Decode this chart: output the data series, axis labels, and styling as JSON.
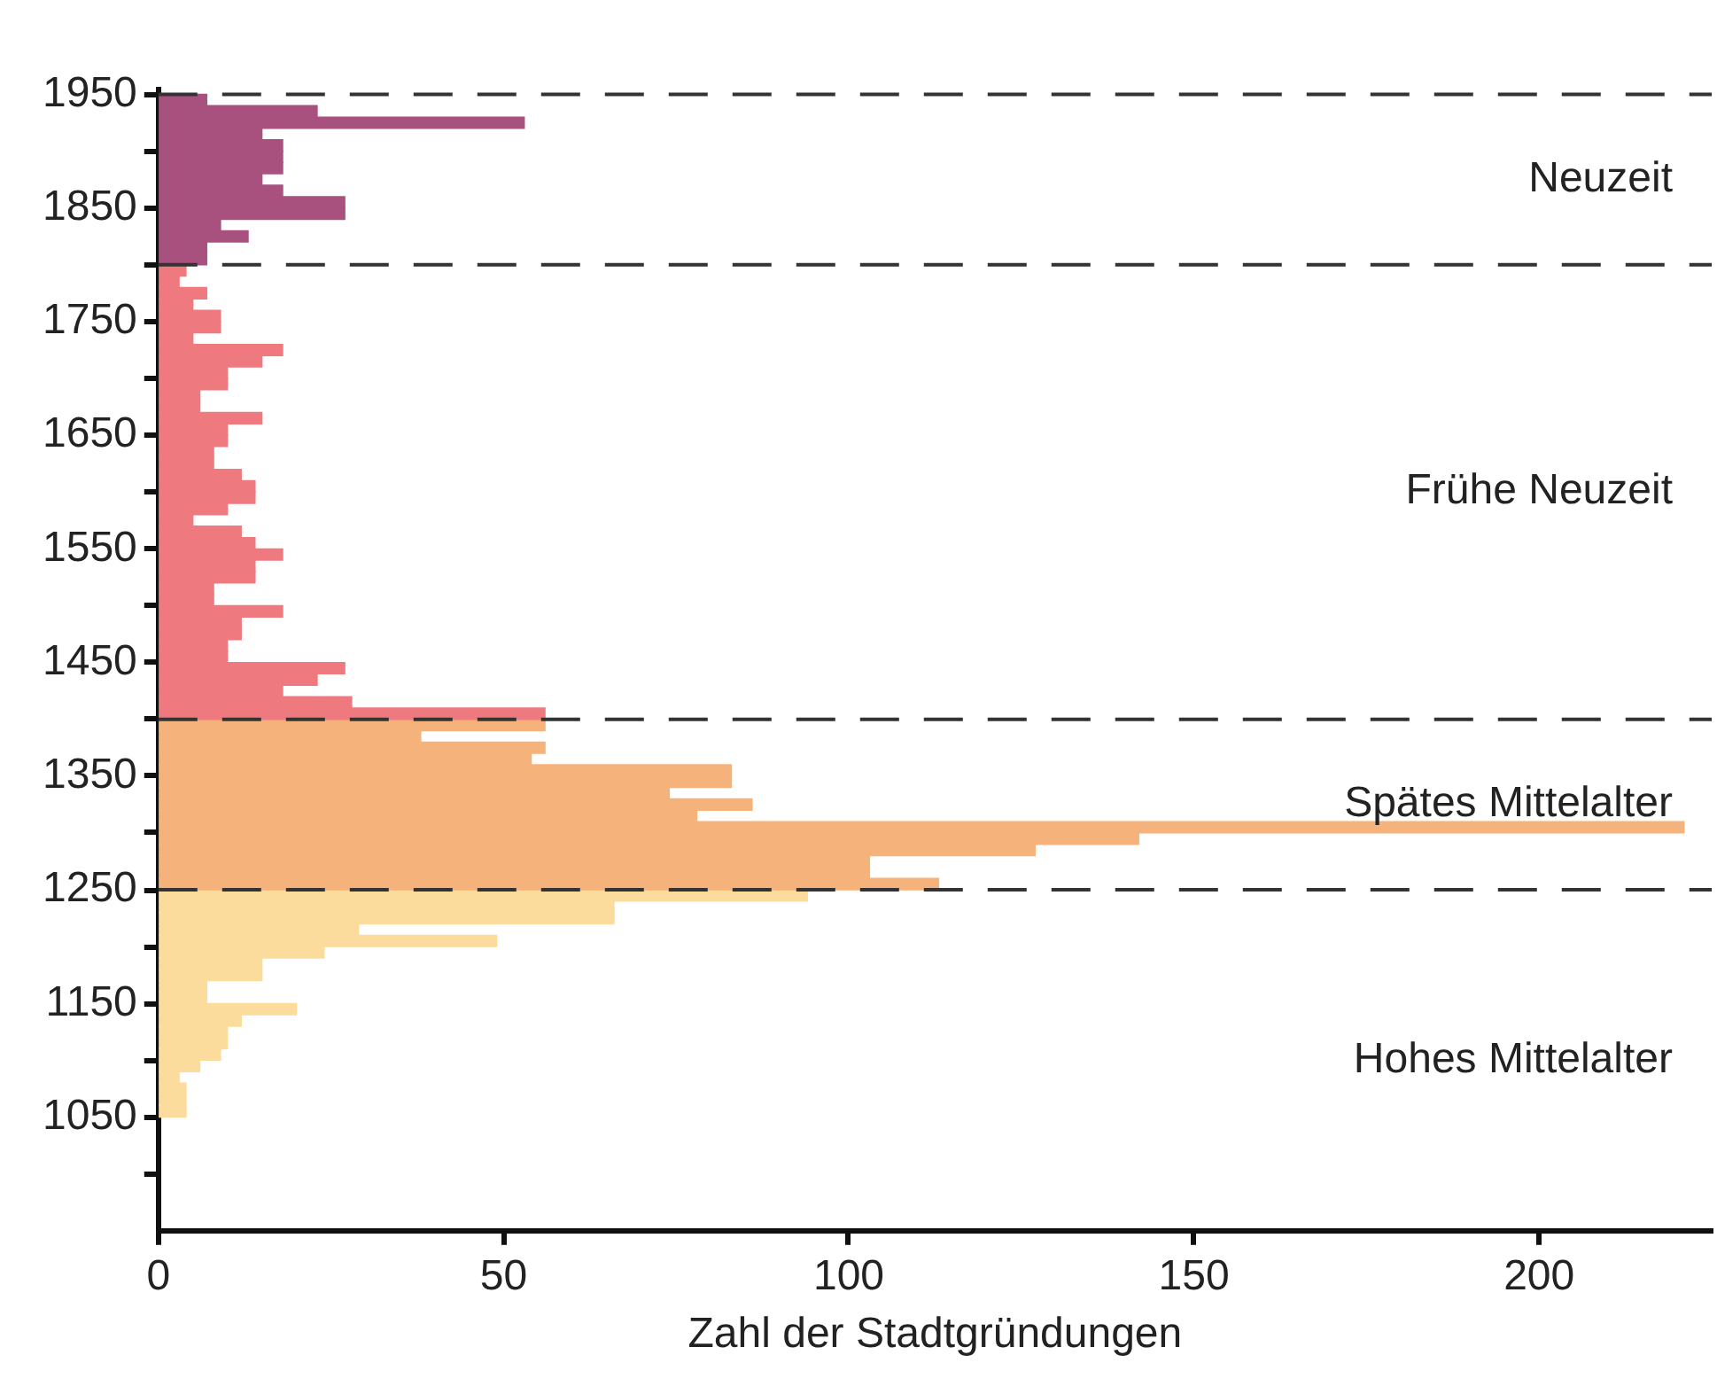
{
  "chart_data": {
    "type": "histogram",
    "orientation": "horizontal",
    "xlabel": "Zahl der Stadtgründungen",
    "bins": [
      1050,
      1060,
      1070,
      1080,
      1090,
      1100,
      1110,
      1120,
      1130,
      1140,
      1150,
      1160,
      1170,
      1180,
      1190,
      1200,
      1210,
      1220,
      1230,
      1240,
      1250,
      1260,
      1270,
      1280,
      1290,
      1300,
      1310,
      1320,
      1330,
      1340,
      1350,
      1360,
      1370,
      1380,
      1390,
      1400,
      1410,
      1420,
      1430,
      1440,
      1450,
      1460,
      1470,
      1480,
      1490,
      1500,
      1510,
      1520,
      1530,
      1540,
      1550,
      1560,
      1570,
      1580,
      1590,
      1600,
      1610,
      1620,
      1630,
      1640,
      1650,
      1660,
      1670,
      1680,
      1690,
      1700,
      1710,
      1720,
      1730,
      1740,
      1750,
      1760,
      1770,
      1780,
      1790,
      1800,
      1810,
      1820,
      1830,
      1840,
      1850,
      1860,
      1870,
      1880,
      1890,
      1900,
      1910,
      1920,
      1930,
      1940,
      1950
    ],
    "values": [
      4,
      4,
      4,
      3,
      6,
      9,
      10,
      10,
      12,
      20,
      7,
      7,
      15,
      15,
      24,
      49,
      29,
      66,
      66,
      94,
      113,
      103,
      103,
      127,
      142,
      221,
      78,
      86,
      74,
      83,
      83,
      54,
      56,
      38,
      56,
      56,
      28,
      18,
      23,
      27,
      10,
      10,
      12,
      12,
      18,
      8,
      8,
      14,
      14,
      18,
      14,
      12,
      5,
      10,
      14,
      14,
      12,
      8,
      8,
      10,
      10,
      15,
      6,
      6,
      10,
      10,
      15,
      18,
      5,
      9,
      9,
      5,
      7,
      3,
      4,
      7,
      7,
      13,
      9,
      27,
      27,
      18,
      15,
      18,
      18,
      18,
      15,
      53,
      23,
      7
    ],
    "colors": [
      "#fbdc9c",
      "#fbdc9c",
      "#fbdc9c",
      "#fbdc9c",
      "#fbdc9c",
      "#fbdc9c",
      "#fbdc9c",
      "#fbdc9c",
      "#fbdc9c",
      "#fbdc9c",
      "#fbdc9c",
      "#fbdc9c",
      "#fbdc9c",
      "#fbdc9c",
      "#fbdc9c",
      "#fbdc9c",
      "#fbdc9c",
      "#fbdc9c",
      "#fbdc9c",
      "#fbdc9c",
      "#f6b27b",
      "#f6b27b",
      "#f6b27b",
      "#f6b27b",
      "#f6b27b",
      "#f6b27b",
      "#f6b27b",
      "#f6b27b",
      "#f6b27b",
      "#f6b27b",
      "#f6b27b",
      "#f6b27b",
      "#f6b27b",
      "#f6b27b",
      "#f6b27b",
      "#ee7a80",
      "#ee7a80",
      "#ee7a80",
      "#ee7a80",
      "#ee7a80",
      "#ee7a80",
      "#ee7a80",
      "#ee7a80",
      "#ee7a80",
      "#ee7a80",
      "#ee7a80",
      "#ee7a80",
      "#ee7a80",
      "#ee7a80",
      "#ee7a80",
      "#ee7a80",
      "#ee7a80",
      "#ee7a80",
      "#ee7a80",
      "#ee7a80",
      "#ee7a80",
      "#ee7a80",
      "#ee7a80",
      "#ee7a80",
      "#ee7a80",
      "#ee7a80",
      "#ee7a80",
      "#ee7a80",
      "#ee7a80",
      "#ee7a80",
      "#ee7a80",
      "#ee7a80",
      "#ee7a80",
      "#ee7a80",
      "#ee7a80",
      "#ee7a80",
      "#ee7a80",
      "#ee7a80",
      "#ee7a80",
      "#ee7a80",
      "#a8517f",
      "#a8517f",
      "#a8517f",
      "#a8517f",
      "#a8517f",
      "#a8517f",
      "#a8517f",
      "#a8517f",
      "#a8517f",
      "#a8517f",
      "#a8517f",
      "#a8517f",
      "#a8517f",
      "#a8517f",
      "#a8517f"
    ],
    "xlim": [
      0,
      225
    ],
    "xticks": [
      0,
      50,
      100,
      150,
      200
    ],
    "ylim": [
      950,
      1955
    ],
    "yticks": [
      {
        "value": 1000,
        "label": null
      },
      1050,
      {
        "value": 1100,
        "label": null
      },
      1150,
      {
        "value": 1200,
        "label": null
      },
      1250,
      {
        "value": 1300,
        "label": null
      },
      1350,
      {
        "value": 1400,
        "label": null
      },
      1450,
      {
        "value": 1500,
        "label": null
      },
      1550,
      {
        "value": 1600,
        "label": null
      },
      1650,
      {
        "value": 1700,
        "label": null
      },
      1750,
      {
        "value": 1800,
        "label": null
      },
      1850,
      {
        "value": 1900,
        "label": null
      },
      1950
    ],
    "grid": false,
    "legend": false,
    "ref_lines": [
      {
        "axis": "y",
        "value": 1250,
        "color": "#333333",
        "line_style": "dashed"
      },
      {
        "axis": "y",
        "value": 1400,
        "color": "#333333",
        "line_style": "dashed"
      },
      {
        "axis": "y",
        "value": 1800,
        "color": "#333333",
        "line_style": "dashed"
      },
      {
        "axis": "y",
        "value": 1950,
        "color": "#333333",
        "line_style": "dashed"
      }
    ],
    "annotations": [
      "Neuzeit",
      "Frühe Neuzeit",
      "Spätes Mittelalter",
      "Hohes Mittelalter"
    ]
  }
}
